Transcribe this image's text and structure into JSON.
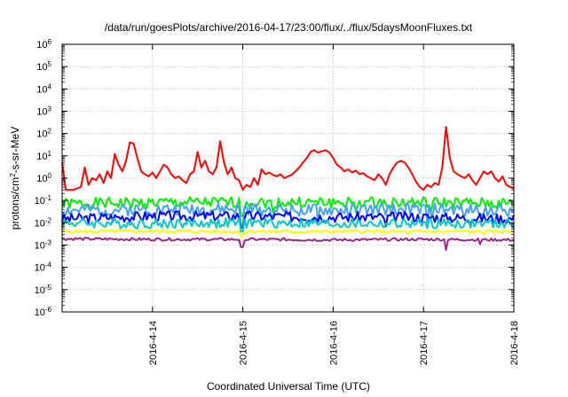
{
  "chart_data": {
    "type": "line",
    "title": "/data/run/goesPlots/archive/2016-04-17/23:00/flux/../flux/5daysMoonFluxes.txt",
    "xlabel": "Coordinated Universal Time (UTC)",
    "ylabel": {
      "base": "protons/cm",
      "sup": "2",
      "rest": "-s-sr-MeV"
    },
    "y_scale": "log",
    "ylim": [
      1e-06,
      1000000.0
    ],
    "xlim": [
      "2016-04-13T00:00",
      "2016-04-18T00:00"
    ],
    "grid": true,
    "y_ticks": [
      {
        "exp": -6,
        "base": "10",
        "sup": "-6"
      },
      {
        "exp": -5,
        "base": "10",
        "sup": "-5"
      },
      {
        "exp": -4,
        "base": "10",
        "sup": "-4"
      },
      {
        "exp": -3,
        "base": "10",
        "sup": "-3"
      },
      {
        "exp": -2,
        "base": "10",
        "sup": "-2"
      },
      {
        "exp": -1,
        "base": "10",
        "sup": "-1"
      },
      {
        "exp": 0,
        "base": "10",
        "sup": "0"
      },
      {
        "exp": 1,
        "base": "10",
        "sup": "1"
      },
      {
        "exp": 2,
        "base": "10",
        "sup": "2"
      },
      {
        "exp": 3,
        "base": "10",
        "sup": "3"
      },
      {
        "exp": 4,
        "base": "10",
        "sup": "4"
      },
      {
        "exp": 5,
        "base": "10",
        "sup": "5"
      },
      {
        "exp": 6,
        "base": "10",
        "sup": "6"
      }
    ],
    "x_ticks": [
      {
        "t": "2016-04-14T00:00",
        "label": "2016-4-14"
      },
      {
        "t": "2016-04-15T00:00",
        "label": "2016-4-15"
      },
      {
        "t": "2016-04-16T00:00",
        "label": "2016-4-16"
      },
      {
        "t": "2016-04-17T00:00",
        "label": "2016-4-17"
      },
      {
        "t": "2016-04-18T00:00",
        "label": "2016-4-18"
      }
    ],
    "series": [
      {
        "color": "#ff0000",
        "points": [
          [
            "2016-04-13T00:00",
            5
          ],
          [
            "2016-04-13T01:00",
            0.3
          ],
          [
            "2016-04-13T03:00",
            0.3
          ],
          [
            "2016-04-13T05:00",
            0.4
          ],
          [
            "2016-04-13T06:00",
            3
          ],
          [
            "2016-04-13T07:00",
            0.5
          ],
          [
            "2016-04-13T08:00",
            1
          ],
          [
            "2016-04-13T09:00",
            0.8
          ],
          [
            "2016-04-13T10:00",
            1.5
          ],
          [
            "2016-04-13T11:00",
            0.6
          ],
          [
            "2016-04-13T12:00",
            2
          ],
          [
            "2016-04-13T13:00",
            1
          ],
          [
            "2016-04-13T14:00",
            12
          ],
          [
            "2016-04-13T15:00",
            4
          ],
          [
            "2016-04-13T16:00",
            2
          ],
          [
            "2016-04-13T17:00",
            6
          ],
          [
            "2016-04-13T18:00",
            40
          ],
          [
            "2016-04-13T19:00",
            35
          ],
          [
            "2016-04-13T20:00",
            8
          ],
          [
            "2016-04-13T21:00",
            2
          ],
          [
            "2016-04-13T22:00",
            1.5
          ],
          [
            "2016-04-13T23:00",
            1.2
          ],
          [
            "2016-04-14T00:00",
            1.8
          ],
          [
            "2016-04-14T01:00",
            1
          ],
          [
            "2016-04-14T02:00",
            2
          ],
          [
            "2016-04-14T03:00",
            4
          ],
          [
            "2016-04-14T04:00",
            3
          ],
          [
            "2016-04-14T05:00",
            1.5
          ],
          [
            "2016-04-14T06:00",
            1
          ],
          [
            "2016-04-14T07:00",
            1.2
          ],
          [
            "2016-04-14T08:00",
            0.8
          ],
          [
            "2016-04-14T09:00",
            0.6
          ],
          [
            "2016-04-14T10:00",
            1.5
          ],
          [
            "2016-04-14T11:00",
            2
          ],
          [
            "2016-04-14T12:00",
            15
          ],
          [
            "2016-04-14T13:00",
            3
          ],
          [
            "2016-04-14T14:00",
            6
          ],
          [
            "2016-04-14T15:00",
            2
          ],
          [
            "2016-04-14T16:00",
            1.5
          ],
          [
            "2016-04-14T17:00",
            3
          ],
          [
            "2016-04-14T18:00",
            45
          ],
          [
            "2016-04-14T19:00",
            5
          ],
          [
            "2016-04-14T20:00",
            1.5
          ],
          [
            "2016-04-14T21:00",
            3
          ],
          [
            "2016-04-14T22:00",
            1
          ],
          [
            "2016-04-14T23:00",
            0.8
          ],
          [
            "2016-04-15T00:00",
            0.3
          ],
          [
            "2016-04-15T01:00",
            0.5
          ],
          [
            "2016-04-15T02:00",
            0.4
          ],
          [
            "2016-04-15T03:00",
            1
          ],
          [
            "2016-04-15T04:00",
            0.5
          ],
          [
            "2016-04-15T05:00",
            2.5
          ],
          [
            "2016-04-15T06:00",
            1.5
          ],
          [
            "2016-04-15T07:00",
            1.8
          ],
          [
            "2016-04-15T08:00",
            1.4
          ],
          [
            "2016-04-15T09:00",
            1.2
          ],
          [
            "2016-04-15T10:00",
            1.5
          ],
          [
            "2016-04-15T11:00",
            1
          ],
          [
            "2016-04-15T12:00",
            1.2
          ],
          [
            "2016-04-15T13:00",
            1.4
          ],
          [
            "2016-04-15T14:00",
            2
          ],
          [
            "2016-04-15T15:00",
            3
          ],
          [
            "2016-04-15T16:00",
            5
          ],
          [
            "2016-04-15T17:00",
            8
          ],
          [
            "2016-04-15T18:00",
            15
          ],
          [
            "2016-04-15T19:00",
            18
          ],
          [
            "2016-04-15T20:00",
            14
          ],
          [
            "2016-04-15T21:00",
            16
          ],
          [
            "2016-04-15T22:00",
            18
          ],
          [
            "2016-04-15T23:00",
            14
          ],
          [
            "2016-04-16T00:00",
            8
          ],
          [
            "2016-04-16T01:00",
            4
          ],
          [
            "2016-04-16T02:00",
            3
          ],
          [
            "2016-04-16T03:00",
            2
          ],
          [
            "2016-04-16T04:00",
            2.5
          ],
          [
            "2016-04-16T05:00",
            1.8
          ],
          [
            "2016-04-16T06:00",
            2.2
          ],
          [
            "2016-04-16T07:00",
            1.5
          ],
          [
            "2016-04-16T08:00",
            1.7
          ],
          [
            "2016-04-16T09:00",
            1.2
          ],
          [
            "2016-04-16T10:00",
            1
          ],
          [
            "2016-04-16T11:00",
            0.8
          ],
          [
            "2016-04-16T12:00",
            1.5
          ],
          [
            "2016-04-16T13:00",
            1
          ],
          [
            "2016-04-16T14:00",
            0.5
          ],
          [
            "2016-04-16T15:00",
            1.5
          ],
          [
            "2016-04-16T16:00",
            3
          ],
          [
            "2016-04-16T17:00",
            5
          ],
          [
            "2016-04-16T18:00",
            6
          ],
          [
            "2016-04-16T19:00",
            5
          ],
          [
            "2016-04-16T20:00",
            3
          ],
          [
            "2016-04-16T21:00",
            1.5
          ],
          [
            "2016-04-16T22:00",
            0.7
          ],
          [
            "2016-04-16T23:00",
            0.4
          ],
          [
            "2016-04-17T00:00",
            0.3
          ],
          [
            "2016-04-17T01:00",
            0.5
          ],
          [
            "2016-04-17T02:00",
            0.4
          ],
          [
            "2016-04-17T03:00",
            0.6
          ],
          [
            "2016-04-17T04:00",
            0.5
          ],
          [
            "2016-04-17T05:00",
            3
          ],
          [
            "2016-04-17T06:00",
            200
          ],
          [
            "2016-04-17T07:00",
            8
          ],
          [
            "2016-04-17T08:00",
            2
          ],
          [
            "2016-04-17T09:00",
            1.5
          ],
          [
            "2016-04-17T10:00",
            1.2
          ],
          [
            "2016-04-17T11:00",
            1
          ],
          [
            "2016-04-17T12:00",
            1.5
          ],
          [
            "2016-04-17T13:00",
            0.8
          ],
          [
            "2016-04-17T14:00",
            0.5
          ],
          [
            "2016-04-17T15:00",
            1
          ],
          [
            "2016-04-17T16:00",
            2
          ],
          [
            "2016-04-17T17:00",
            1.5
          ],
          [
            "2016-04-17T18:00",
            2
          ],
          [
            "2016-04-17T19:00",
            1
          ],
          [
            "2016-04-17T20:00",
            0.7
          ],
          [
            "2016-04-17T21:00",
            1.2
          ],
          [
            "2016-04-17T22:00",
            0.5
          ],
          [
            "2016-04-17T23:00",
            0.4
          ],
          [
            "2016-04-18T00:00",
            0.35
          ]
        ]
      },
      {
        "color": "#00ee00",
        "seed": 1,
        "knots": [
          [
            "2016-04-13T00:00",
            0.07
          ],
          [
            "2016-04-14T00:00",
            0.08
          ],
          [
            "2016-04-15T00:00",
            0.08
          ],
          [
            "2016-04-16T00:00",
            0.08
          ],
          [
            "2016-04-17T00:00",
            0.08
          ],
          [
            "2016-04-18T00:00",
            0.07
          ]
        ],
        "jitter": 0.5,
        "dips": [
          [
            "2016-04-14T23:45",
            0.02
          ],
          [
            "2016-04-15T08:00",
            0.03
          ],
          [
            "2016-04-16T06:00",
            0.03
          ],
          [
            "2016-04-17T02:00",
            0.03
          ]
        ]
      },
      {
        "color": "#44a0ff",
        "seed": 2,
        "knots": [
          [
            "2016-04-13T00:00",
            0.035
          ],
          [
            "2016-04-14T00:00",
            0.04
          ],
          [
            "2016-04-15T00:00",
            0.04
          ],
          [
            "2016-04-16T00:00",
            0.035
          ],
          [
            "2016-04-17T00:00",
            0.04
          ],
          [
            "2016-04-18T00:00",
            0.035
          ]
        ],
        "jitter": 0.55,
        "dips": [
          [
            "2016-04-14T23:45",
            0.008
          ],
          [
            "2016-04-15T20:00",
            0.01
          ],
          [
            "2016-04-17T01:00",
            0.01
          ]
        ]
      },
      {
        "color": "#0000ff",
        "seed": 3,
        "knots": [
          [
            "2016-04-13T00:00",
            0.015
          ],
          [
            "2016-04-14T00:00",
            0.02
          ],
          [
            "2016-04-15T00:00",
            0.02
          ],
          [
            "2016-04-16T00:00",
            0.018
          ],
          [
            "2016-04-17T00:00",
            0.018
          ],
          [
            "2016-04-18T00:00",
            0.015
          ]
        ],
        "jitter": 0.45,
        "dips": [
          [
            "2016-04-14T23:45",
            0.006
          ],
          [
            "2016-04-16T14:00",
            0.007
          ]
        ]
      },
      {
        "color": "#00c8c8",
        "seed": 4,
        "knots": [
          [
            "2016-04-13T00:00",
            0.01
          ],
          [
            "2016-04-14T00:00",
            0.009
          ],
          [
            "2016-04-15T00:00",
            0.01
          ],
          [
            "2016-04-16T00:00",
            0.009
          ],
          [
            "2016-04-17T00:00",
            0.009
          ],
          [
            "2016-04-18T00:00",
            0.009
          ]
        ],
        "jitter": 0.45,
        "dips": [
          [
            "2016-04-14T23:45",
            0.004
          ]
        ]
      },
      {
        "color": "#ffff00",
        "seed": 5,
        "knots": [
          [
            "2016-04-13T00:00",
            0.004
          ],
          [
            "2016-04-14T00:00",
            0.0042
          ],
          [
            "2016-04-15T00:00",
            0.004
          ],
          [
            "2016-04-16T00:00",
            0.004
          ],
          [
            "2016-04-17T00:00",
            0.004
          ],
          [
            "2016-04-18T00:00",
            0.004
          ]
        ],
        "jitter": 0.15,
        "dips": [
          [
            "2016-04-14T23:45",
            0.0025
          ],
          [
            "2016-04-16T20:00",
            0.003
          ],
          [
            "2016-04-17T16:00",
            0.003
          ]
        ]
      },
      {
        "color": "#a0208c",
        "seed": 6,
        "knots": [
          [
            "2016-04-13T00:00",
            0.0019
          ],
          [
            "2016-04-14T00:00",
            0.0018
          ],
          [
            "2016-04-15T00:00",
            0.0018
          ],
          [
            "2016-04-16T00:00",
            0.0017
          ],
          [
            "2016-04-17T00:00",
            0.0018
          ],
          [
            "2016-04-18T00:00",
            0.0017
          ]
        ],
        "jitter": 0.12,
        "dips": [
          [
            "2016-04-14T23:45",
            0.0008
          ],
          [
            "2016-04-17T06:00",
            0.0006
          ],
          [
            "2016-04-17T15:00",
            0.0011
          ]
        ]
      }
    ]
  }
}
